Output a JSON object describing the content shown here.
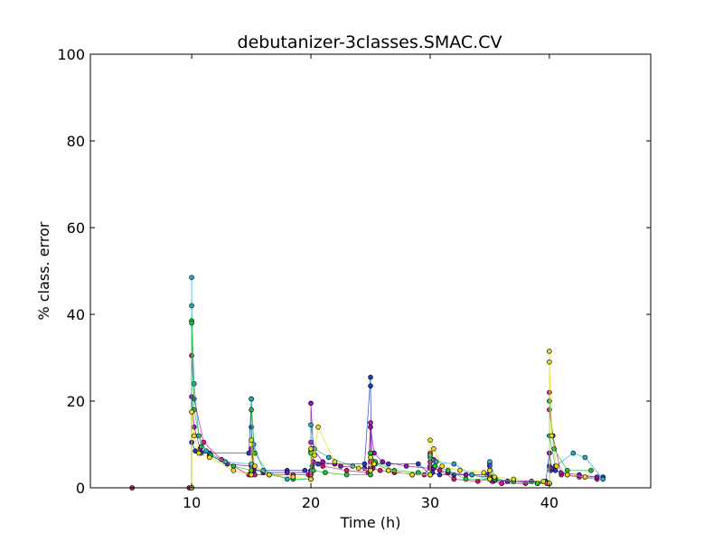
{
  "chart_data": {
    "type": "line",
    "title": "debutanizer-3classes.SMAC.CV",
    "xlabel": "Time (h)",
    "ylabel": "% class. error",
    "xlim": [
      1.5,
      48.5
    ],
    "ylim": [
      0,
      100
    ],
    "xticks": [
      10,
      20,
      30,
      40
    ],
    "yticks": [
      0,
      20,
      40,
      60,
      80,
      100
    ],
    "grid": false,
    "legend": "none",
    "series": [
      {
        "color": "#1f3fbf",
        "x": [
          5.0,
          9.8,
          10.0,
          10.0,
          10.3,
          10.8,
          11.5,
          14.8,
          15.0,
          15.0,
          15.2,
          16.0,
          18.0,
          19.5,
          20.0,
          20.0,
          20.1,
          20.6,
          22.0,
          24.5,
          25.0,
          25.0,
          25.1,
          25.4,
          26.5,
          29.0,
          30.0,
          30.2,
          30.8,
          32.0,
          33.5,
          34.8,
          35.0,
          35.3,
          36.5,
          38.5,
          39.7,
          40.0,
          40.0,
          40.1,
          40.5,
          41.5,
          43.0,
          44.5
        ],
        "y": [
          0,
          0,
          0,
          10.5,
          8.5,
          8.0,
          8.0,
          8.0,
          20.5,
          14.0,
          4.0,
          4.0,
          4.0,
          4.0,
          4.0,
          8.5,
          5.0,
          5.5,
          5.5,
          5.5,
          25.5,
          23.5,
          6.0,
          5.5,
          5.5,
          5.5,
          3.0,
          3.5,
          3.0,
          3.0,
          3.0,
          3.0,
          5.0,
          1.5,
          1.5,
          1.5,
          1.5,
          8.0,
          5.0,
          4.0,
          4.0,
          3.0,
          2.5,
          2.5
        ]
      },
      {
        "color": "#d8147a",
        "x": [
          5.0,
          9.8,
          10.0,
          10.0,
          10.2,
          11.0,
          12.5,
          14.8,
          15.0,
          15.0,
          15.3,
          16.5,
          18.5,
          19.8,
          20.0,
          20.0,
          20.2,
          21.0,
          23.0,
          24.8,
          25.0,
          25.0,
          25.2,
          25.8,
          27.0,
          29.5,
          30.0,
          30.0,
          30.3,
          30.8,
          32.0,
          34.0,
          35.0,
          35.2,
          36.0,
          38.0,
          39.8,
          40.0,
          40.0,
          40.0,
          40.3,
          41.0,
          42.5,
          44.0
        ],
        "y": [
          0,
          0,
          0,
          30.5,
          20.5,
          10.5,
          6.5,
          3.0,
          3.5,
          3.0,
          3.0,
          3.0,
          3.0,
          3.0,
          3.0,
          10.5,
          6.0,
          5.0,
          4.0,
          3.5,
          15.0,
          6.0,
          4.5,
          4.0,
          3.5,
          3.0,
          5.0,
          8.0,
          6.5,
          4.0,
          2.0,
          1.5,
          2.0,
          1.5,
          1.0,
          1.0,
          1.0,
          1.0,
          22.0,
          18.0,
          12.0,
          3.0,
          2.5,
          2.0
        ]
      },
      {
        "color": "#8a10c0",
        "x": [
          10.0,
          10.0,
          10.2,
          10.7,
          11.5,
          13.0,
          15.0,
          15.0,
          15.2,
          16.0,
          18.0,
          20.0,
          20.0,
          20.2,
          21.0,
          22.5,
          24.5,
          25.0,
          25.0,
          25.3,
          26.0,
          28.0,
          30.0,
          30.0,
          30.3,
          31.5,
          33.0,
          35.0,
          35.0,
          35.3,
          36.5,
          38.5,
          40.0,
          40.0,
          40.2,
          41.0,
          42.5,
          44.0
        ],
        "y": [
          0,
          21.0,
          14.0,
          9.0,
          7.5,
          5.5,
          5.0,
          9.0,
          4.5,
          3.5,
          3.5,
          3.5,
          19.5,
          9.0,
          6.0,
          5.0,
          4.5,
          4.5,
          14.0,
          8.0,
          6.0,
          5.0,
          4.5,
          6.0,
          4.5,
          3.5,
          3.0,
          2.5,
          5.5,
          2.0,
          1.5,
          1.5,
          1.0,
          8.0,
          4.5,
          3.5,
          3.0,
          2.5
        ]
      },
      {
        "color": "#22aacc",
        "x": [
          10.0,
          10.0,
          10.0,
          10.2,
          10.6,
          11.2,
          12.8,
          15.0,
          15.0,
          15.2,
          16.0,
          18.0,
          20.0,
          20.0,
          20.3,
          21.5,
          23.5,
          25.0,
          25.0,
          25.3,
          26.5,
          28.5,
          30.0,
          30.0,
          30.5,
          32.0,
          33.5,
          35.0,
          35.0,
          35.5,
          37.0,
          39.0,
          40.0,
          40.0,
          40.5,
          42.0,
          43.0,
          44.5
        ],
        "y": [
          0,
          48.5,
          42.0,
          24.0,
          12.0,
          8.5,
          6.0,
          5.5,
          20.5,
          10.0,
          4.0,
          2.0,
          2.0,
          14.5,
          9.0,
          7.0,
          5.0,
          4.0,
          8.0,
          6.0,
          4.0,
          3.0,
          3.0,
          7.0,
          6.0,
          5.5,
          3.0,
          2.0,
          6.0,
          2.0,
          1.5,
          1.0,
          1.0,
          12.0,
          5.0,
          8.0,
          7.0,
          2.0
        ]
      },
      {
        "color": "#22c03a",
        "x": [
          10.0,
          10.0,
          10.0,
          10.2,
          10.8,
          11.6,
          13.5,
          15.0,
          15.0,
          15.3,
          16.5,
          18.5,
          20.0,
          20.0,
          20.2,
          21.2,
          23.0,
          25.0,
          25.0,
          25.4,
          27.0,
          29.0,
          30.0,
          30.0,
          30.4,
          31.5,
          33.0,
          35.0,
          35.0,
          35.4,
          37.0,
          39.0,
          40.0,
          40.0,
          40.4,
          41.5,
          43.5
        ],
        "y": [
          0,
          38.5,
          38.0,
          18.0,
          9.5,
          7.5,
          5.0,
          4.0,
          18.0,
          8.0,
          3.0,
          2.0,
          2.0,
          8.0,
          4.0,
          3.5,
          3.0,
          3.0,
          8.0,
          6.0,
          4.0,
          3.5,
          3.0,
          7.5,
          5.0,
          4.0,
          2.0,
          2.0,
          4.0,
          2.0,
          1.5,
          1.0,
          1.0,
          20.0,
          9.0,
          4.0,
          4.0
        ]
      },
      {
        "color": "#e8d810",
        "x": [
          10.0,
          10.0,
          10.2,
          10.6,
          11.5,
          13.5,
          15.0,
          15.0,
          15.3,
          16.5,
          18.5,
          20.0,
          20.0,
          20.3,
          20.6,
          22.0,
          24.0,
          25.0,
          25.0,
          25.3,
          26.5,
          28.5,
          30.0,
          30.0,
          30.3,
          31.0,
          32.5,
          34.5,
          35.0,
          35.0,
          35.4,
          37.0,
          39.5,
          40.0,
          40.0,
          40.0,
          40.2,
          40.6,
          41.5,
          43.0
        ],
        "y": [
          0,
          17.5,
          12.0,
          8.0,
          7.0,
          4.0,
          3.0,
          11.0,
          5.0,
          3.0,
          2.5,
          2.0,
          9.0,
          7.5,
          14.0,
          6.0,
          4.5,
          4.0,
          7.0,
          5.5,
          4.0,
          3.0,
          3.0,
          11.0,
          9.0,
          5.0,
          4.0,
          3.5,
          2.0,
          4.0,
          2.5,
          2.0,
          1.5,
          1.0,
          31.5,
          29.0,
          12.0,
          5.0,
          3.0,
          2.5
        ]
      }
    ]
  }
}
